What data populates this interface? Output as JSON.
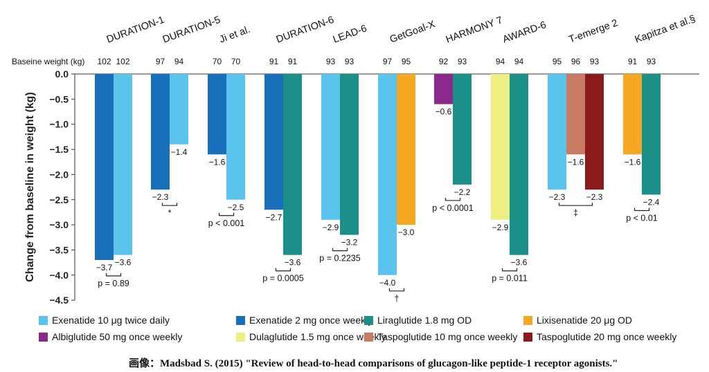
{
  "chart_data": {
    "type": "bar",
    "ylabel": "Change from baseline in weight (kg)",
    "ylim": [
      -4.5,
      0
    ],
    "yticks": [
      "0.0",
      "-0.5",
      "-1.0",
      "-1.5",
      "-2.0",
      "-2.5",
      "-3.0",
      "-3.5",
      "-4.0",
      "-4.5"
    ],
    "baseline_label": "Baseine weight (kg)",
    "series": [
      {
        "key": "exenatide_10",
        "name": "Exenatide 10 μg twice daily",
        "color": "#5bc4ec"
      },
      {
        "key": "exenatide_2",
        "name": "Exenatide 2 mg once weekly",
        "color": "#1a6fba"
      },
      {
        "key": "liraglutide",
        "name": "Liraglutide 1.8 mg OD",
        "color": "#1a9088"
      },
      {
        "key": "lixisenatide",
        "name": "Lixisenatide 20 μg OD",
        "color": "#f7a823"
      },
      {
        "key": "albiglutide",
        "name": "Albiglutide 50 mg once weekly",
        "color": "#8b2a8a"
      },
      {
        "key": "dulaglutide",
        "name": "Dulaglutide 1.5 mg once weekly",
        "color": "#eeee82"
      },
      {
        "key": "taspoglutide_10",
        "name": "Taspoglutide 10 mg once weekly",
        "color": "#c87a62"
      },
      {
        "key": "taspoglutide_20",
        "name": "Taspoglutide 20 mg once weekly",
        "color": "#8a1a1c"
      }
    ],
    "groups": [
      {
        "name": "DURATION-1",
        "stat": "p = 0.89",
        "bars": [
          {
            "series": "exenatide_2",
            "value": -3.7,
            "label": "−3.7",
            "baseline": "102"
          },
          {
            "series": "exenatide_10",
            "value": -3.6,
            "label": "−3.6",
            "baseline": "102"
          }
        ]
      },
      {
        "name": "DURATION-5",
        "stat": "*",
        "bars": [
          {
            "series": "exenatide_2",
            "value": -2.3,
            "label": "−2.3",
            "baseline": "97"
          },
          {
            "series": "exenatide_10",
            "value": -1.4,
            "label": "−1.4",
            "baseline": "94"
          }
        ]
      },
      {
        "name": "Ji et al.",
        "stat": "p < 0.001",
        "bars": [
          {
            "series": "exenatide_2",
            "value": -1.6,
            "label": "−1.6",
            "baseline": "70"
          },
          {
            "series": "exenatide_10",
            "value": -2.5,
            "label": "−2.5",
            "baseline": "70"
          }
        ]
      },
      {
        "name": "DURATION-6",
        "stat": "p = 0.0005",
        "bars": [
          {
            "series": "exenatide_2",
            "value": -2.7,
            "label": "−2.7",
            "baseline": "91"
          },
          {
            "series": "liraglutide",
            "value": -3.6,
            "label": "−3.6",
            "baseline": "91"
          }
        ]
      },
      {
        "name": "LEAD-6",
        "stat": "p = 0.2235",
        "bars": [
          {
            "series": "exenatide_10",
            "value": -2.9,
            "label": "−2.9",
            "baseline": "93"
          },
          {
            "series": "liraglutide",
            "value": -3.2,
            "label": "−3.2",
            "baseline": "93"
          }
        ]
      },
      {
        "name": "GetGoal-X",
        "stat": "†",
        "bars": [
          {
            "series": "exenatide_10",
            "value": -4.0,
            "label": "−4.0",
            "baseline": "97"
          },
          {
            "series": "lixisenatide",
            "value": -3.0,
            "label": "−3.0",
            "baseline": "95"
          }
        ]
      },
      {
        "name": "HARMONY 7",
        "stat": "p < 0.0001",
        "bars": [
          {
            "series": "albiglutide",
            "value": -0.6,
            "label": "−0.6",
            "baseline": "92"
          },
          {
            "series": "liraglutide",
            "value": -2.2,
            "label": "−2.2",
            "baseline": "93"
          }
        ]
      },
      {
        "name": "AWARD-6",
        "stat": "p = 0.011",
        "bars": [
          {
            "series": "dulaglutide",
            "value": -2.9,
            "label": "−2.9",
            "baseline": "94"
          },
          {
            "series": "liraglutide",
            "value": -3.6,
            "label": "−3.6",
            "baseline": "94"
          }
        ]
      },
      {
        "name": "T-emerge 2",
        "stat": "‡",
        "bars": [
          {
            "series": "exenatide_10",
            "value": -2.3,
            "label": "−2.3",
            "baseline": "95"
          },
          {
            "series": "taspoglutide_10",
            "value": -1.6,
            "label": "−1.6",
            "baseline": "96"
          },
          {
            "series": "taspoglutide_20",
            "value": -2.3,
            "label": "−2.3",
            "baseline": "93"
          }
        ]
      },
      {
        "name": "Kapitza et al.§",
        "stat": "p < 0.01",
        "bars": [
          {
            "series": "lixisenatide",
            "value": -1.6,
            "label": "−1.6",
            "baseline": "91"
          },
          {
            "series": "liraglutide",
            "value": -2.4,
            "label": "−2.4",
            "baseline": "93"
          }
        ]
      }
    ]
  },
  "caption": "画像：Madsbad S. (2015) \"Review of head-to-head comparisons of glucagon-like peptide-1 receptor agonists.\""
}
